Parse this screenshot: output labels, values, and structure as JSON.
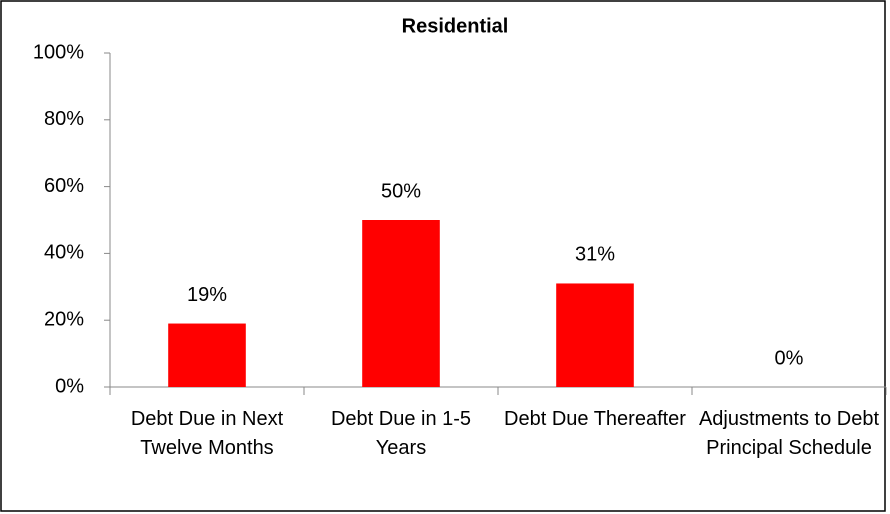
{
  "chart_data": {
    "type": "bar",
    "title": "Residential",
    "categories": [
      "Debt Due in Next Twelve Months",
      "Debt Due in 1-5 Years",
      "Debt Due Thereafter",
      "Adjustments to Debt Principal Schedule"
    ],
    "values": [
      19,
      50,
      31,
      0
    ],
    "value_labels": [
      "19%",
      "50%",
      "31%",
      "0%"
    ],
    "color": "#ff0000",
    "ylim": [
      0,
      100
    ],
    "yticks": [
      {
        "value": 0,
        "label": "0%"
      },
      {
        "value": 20,
        "label": "20%"
      },
      {
        "value": 40,
        "label": "40%"
      },
      {
        "value": 60,
        "label": "60%"
      },
      {
        "value": 80,
        "label": "80%"
      },
      {
        "value": 100,
        "label": "100%"
      }
    ],
    "grid": false
  }
}
